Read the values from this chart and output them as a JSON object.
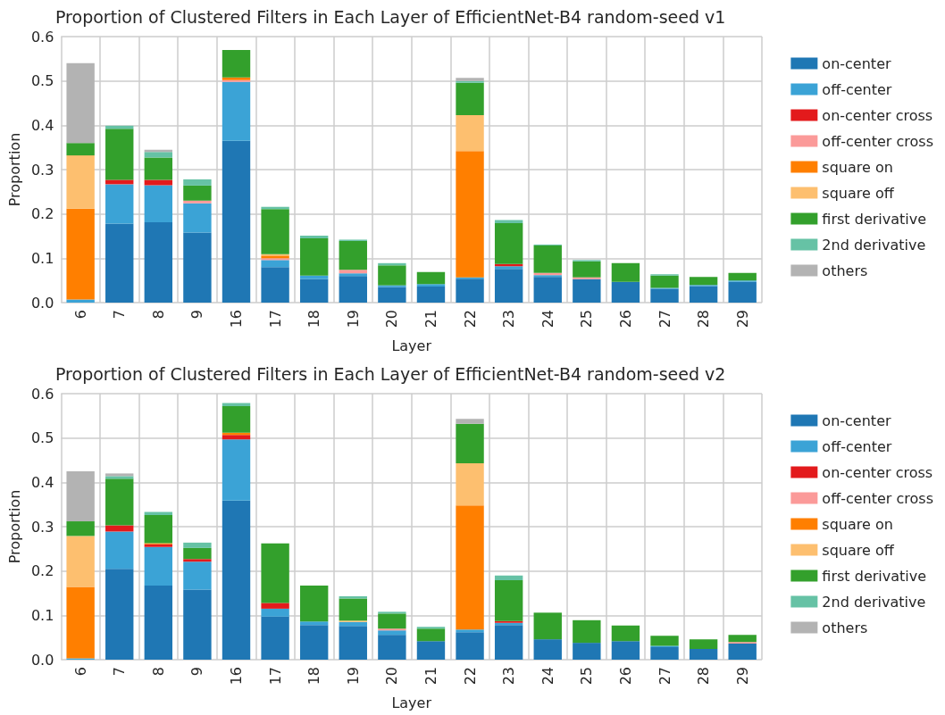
{
  "chart_data": [
    {
      "type": "bar",
      "stacked": true,
      "title": "Proportion of Clustered Filters in Each Layer of EfficientNet-B4 random-seed v1",
      "xlabel": "Layer",
      "ylabel": "Proportion",
      "categories": [
        "6",
        "7",
        "8",
        "9",
        "16",
        "17",
        "18",
        "19",
        "20",
        "21",
        "22",
        "23",
        "24",
        "25",
        "26",
        "27",
        "28",
        "29"
      ],
      "ylim": [
        0,
        0.6
      ],
      "yticks": [
        {
          "value": 0,
          "label": "0.0"
        },
        {
          "value": 0.1,
          "label": "0.1"
        },
        {
          "value": 0.2,
          "label": "0.2"
        },
        {
          "value": 0.3,
          "label": "0.3"
        },
        {
          "value": 0.4,
          "label": "0.4"
        },
        {
          "value": 0.5,
          "label": "0.5"
        },
        {
          "value": 0.6,
          "label": "0.6"
        }
      ],
      "grid": true,
      "legend": "right",
      "series": [
        {
          "name": "on-center",
          "color": "#1f77b4",
          "values": [
            null,
            0.178,
            0.181,
            0.158,
            0.365,
            0.08,
            0.053,
            0.06,
            0.035,
            0.036,
            0.054,
            0.076,
            0.058,
            0.053,
            0.047,
            0.031,
            0.037,
            0.047
          ]
        },
        {
          "name": "off-center",
          "color": "#3ba3d6",
          "values": [
            0.007,
            0.089,
            0.084,
            0.066,
            0.133,
            0.016,
            0.008,
            0.006,
            0.004,
            0.006,
            0.003,
            0.006,
            0.004,
            null,
            null,
            0.002,
            0.003,
            0.003
          ]
        },
        {
          "name": "on-center cross",
          "color": "#e31a1c",
          "values": [
            null,
            0.01,
            0.012,
            null,
            null,
            null,
            null,
            null,
            null,
            null,
            null,
            0.005,
            null,
            null,
            null,
            null,
            null,
            null
          ]
        },
        {
          "name": "off-center cross",
          "color": "#fb9a99",
          "values": [
            null,
            null,
            null,
            0.006,
            0.004,
            0.004,
            null,
            0.008,
            null,
            null,
            null,
            null,
            0.005,
            0.004,
            null,
            null,
            null,
            null
          ]
        },
        {
          "name": "square on",
          "color": "#ff7f00",
          "values": [
            0.205,
            null,
            null,
            null,
            0.006,
            0.006,
            null,
            null,
            null,
            null,
            0.285,
            null,
            null,
            null,
            null,
            null,
            null,
            null
          ]
        },
        {
          "name": "square off",
          "color": "#fdbf6f",
          "values": [
            0.12,
            null,
            null,
            null,
            null,
            0.003,
            null,
            null,
            null,
            null,
            0.081,
            null,
            null,
            null,
            null,
            null,
            null,
            null
          ]
        },
        {
          "name": "first derivative",
          "color": "#33a02c",
          "values": [
            0.028,
            0.115,
            0.05,
            0.034,
            0.062,
            0.102,
            0.084,
            0.065,
            0.045,
            0.027,
            0.073,
            0.092,
            0.062,
            0.036,
            0.042,
            0.028,
            0.018,
            0.017
          ]
        },
        {
          "name": "2nd derivative",
          "color": "#66c2a5",
          "values": [
            null,
            0.007,
            0.013,
            0.014,
            null,
            0.005,
            0.006,
            0.003,
            0.005,
            null,
            0.004,
            0.007,
            0.002,
            0.003,
            null,
            0.003,
            null,
            null
          ]
        },
        {
          "name": "others",
          "color": "#b3b3b3",
          "values": [
            0.18,
            null,
            0.005,
            null,
            null,
            null,
            null,
            null,
            null,
            null,
            0.007,
            null,
            null,
            null,
            null,
            null,
            null,
            null
          ]
        }
      ]
    },
    {
      "type": "bar",
      "stacked": true,
      "title": "Proportion of Clustered Filters in Each Layer of EfficientNet-B4 random-seed v2",
      "xlabel": "Layer",
      "ylabel": "Proportion",
      "categories": [
        "6",
        "7",
        "8",
        "9",
        "16",
        "17",
        "18",
        "19",
        "20",
        "21",
        "22",
        "23",
        "24",
        "25",
        "26",
        "27",
        "28",
        "29"
      ],
      "ylim": [
        0,
        0.6
      ],
      "yticks": [
        {
          "value": 0,
          "label": "0.0"
        },
        {
          "value": 0.1,
          "label": "0.1"
        },
        {
          "value": 0.2,
          "label": "0.2"
        },
        {
          "value": 0.3,
          "label": "0.3"
        },
        {
          "value": 0.4,
          "label": "0.4"
        },
        {
          "value": 0.5,
          "label": "0.5"
        },
        {
          "value": 0.6,
          "label": "0.6"
        }
      ],
      "grid": true,
      "legend": "right",
      "series": [
        {
          "name": "on-center",
          "color": "#1f77b4",
          "values": [
            null,
            0.205,
            0.167,
            0.158,
            0.359,
            0.097,
            0.078,
            0.076,
            0.056,
            0.042,
            0.062,
            0.078,
            0.046,
            0.038,
            0.042,
            0.028,
            0.024,
            0.036
          ]
        },
        {
          "name": "off-center",
          "color": "#3ba3d6",
          "values": [
            0.003,
            0.084,
            0.087,
            0.063,
            0.138,
            0.018,
            0.008,
            0.009,
            0.01,
            null,
            0.006,
            0.005,
            null,
            null,
            null,
            0.003,
            null,
            null
          ]
        },
        {
          "name": "on-center cross",
          "color": "#e31a1c",
          "values": [
            null,
            0.014,
            0.006,
            0.006,
            0.01,
            0.013,
            null,
            null,
            null,
            null,
            null,
            0.004,
            null,
            null,
            null,
            null,
            null,
            null
          ]
        },
        {
          "name": "off-center cross",
          "color": "#fb9a99",
          "values": [
            null,
            null,
            null,
            null,
            null,
            null,
            null,
            null,
            0.004,
            null,
            null,
            null,
            null,
            null,
            null,
            null,
            null,
            0.004
          ]
        },
        {
          "name": "square on",
          "color": "#ff7f00",
          "values": [
            0.161,
            null,
            0.003,
            null,
            0.005,
            null,
            null,
            null,
            null,
            null,
            0.28,
            null,
            null,
            null,
            null,
            null,
            null,
            null
          ]
        },
        {
          "name": "square off",
          "color": "#fdbf6f",
          "values": [
            0.115,
            null,
            null,
            null,
            null,
            null,
            null,
            0.003,
            null,
            null,
            0.095,
            null,
            null,
            null,
            null,
            null,
            null,
            null
          ]
        },
        {
          "name": "first derivative",
          "color": "#33a02c",
          "values": [
            0.033,
            0.105,
            0.063,
            0.025,
            0.06,
            0.134,
            0.081,
            0.05,
            0.034,
            0.028,
            0.089,
            0.092,
            0.06,
            0.051,
            0.035,
            0.023,
            0.022,
            0.016
          ]
        },
        {
          "name": "2nd derivative",
          "color": "#66c2a5",
          "values": [
            null,
            0.006,
            0.007,
            0.012,
            0.007,
            null,
            null,
            0.005,
            0.004,
            0.004,
            null,
            0.011,
            null,
            null,
            null,
            null,
            null,
            null
          ]
        },
        {
          "name": "others",
          "color": "#b3b3b3",
          "values": [
            0.113,
            0.006,
            null,
            null,
            null,
            null,
            null,
            null,
            null,
            null,
            0.011,
            null,
            null,
            null,
            null,
            null,
            null,
            null
          ]
        }
      ]
    }
  ]
}
